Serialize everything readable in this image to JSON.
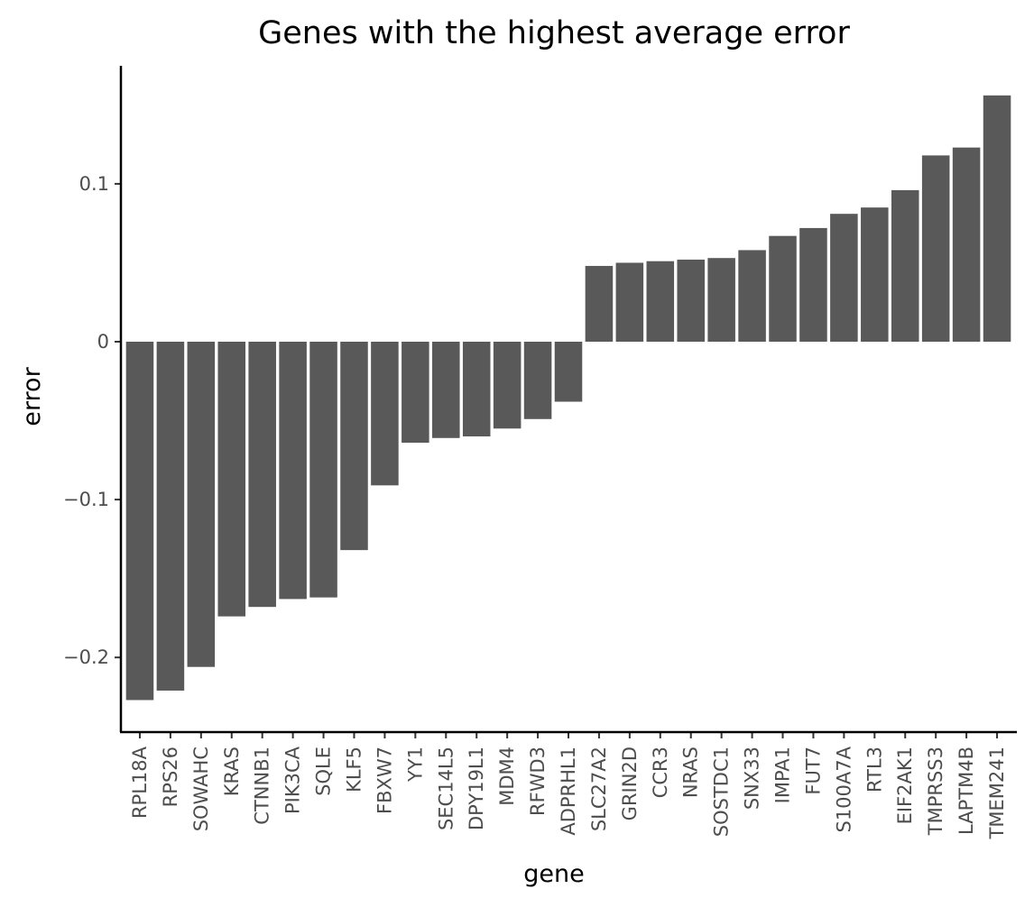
{
  "chart_data": {
    "type": "bar",
    "title": "Genes with the highest average error",
    "xlabel": "gene",
    "ylabel": "error",
    "ylim": [
      -0.248,
      0.157
    ],
    "yticks": [
      -0.2,
      -0.1,
      0,
      0.1
    ],
    "ytick_labels": [
      "−0.2",
      "−0.1",
      "0",
      "0.1"
    ],
    "bar_color": "#595959",
    "grid": false,
    "legend": "none",
    "categories": [
      "RPL18A",
      "RPS26",
      "SOWAHC",
      "KRAS",
      "CTNNB1",
      "PIK3CA",
      "SQLE",
      "KLF5",
      "FBXW7",
      "YY1",
      "SEC14L5",
      "DPY19L1",
      "MDM4",
      "RFWD3",
      "ADPRHL1",
      "SLC27A2",
      "GRIN2D",
      "CCR3",
      "NRAS",
      "SOSTDC1",
      "SNX33",
      "IMPA1",
      "FUT7",
      "S100A7A",
      "RTL3",
      "EIF2AK1",
      "TMPRSS3",
      "LAPTM4B",
      "TMEM241"
    ],
    "values": [
      -0.227,
      -0.221,
      -0.206,
      -0.174,
      -0.168,
      -0.163,
      -0.162,
      -0.132,
      -0.091,
      -0.064,
      -0.061,
      -0.06,
      -0.055,
      -0.049,
      -0.038,
      0.048,
      0.05,
      0.051,
      0.052,
      0.053,
      0.058,
      0.067,
      0.072,
      0.081,
      0.085,
      0.096,
      0.118,
      0.123,
      0.156
    ]
  }
}
